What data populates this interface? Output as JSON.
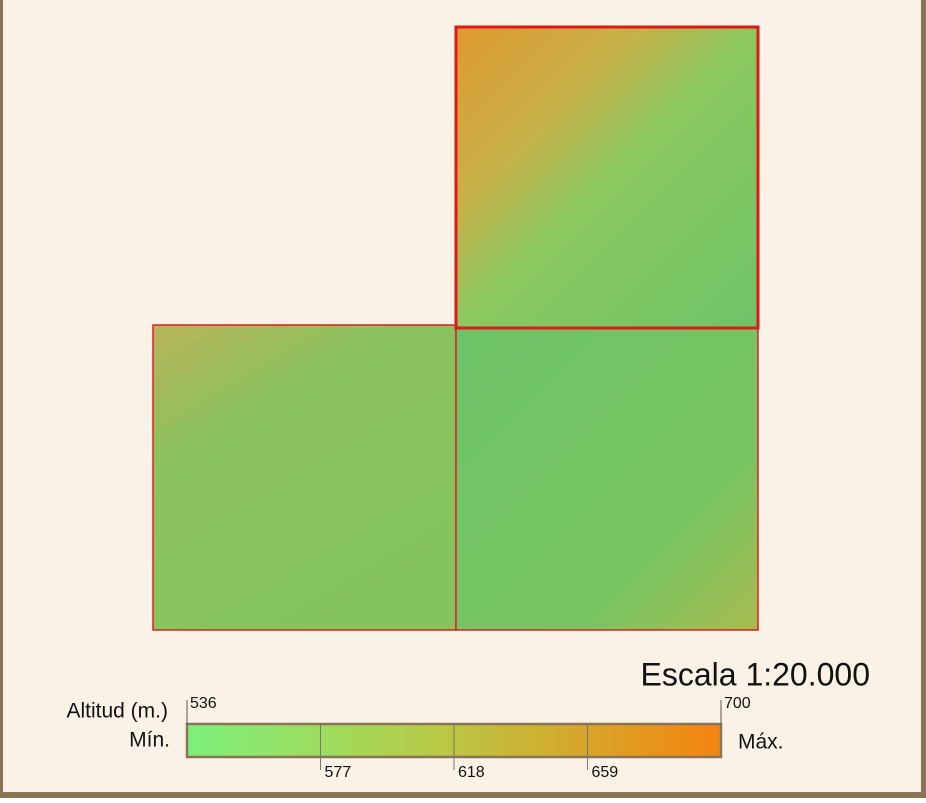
{
  "scale": "Escala 1:20.000",
  "legend": {
    "title": "Altitud (m.)",
    "min_label": "Mín.",
    "max_label": "Máx.",
    "ticks": [
      536,
      577,
      618,
      659,
      700
    ]
  }
}
